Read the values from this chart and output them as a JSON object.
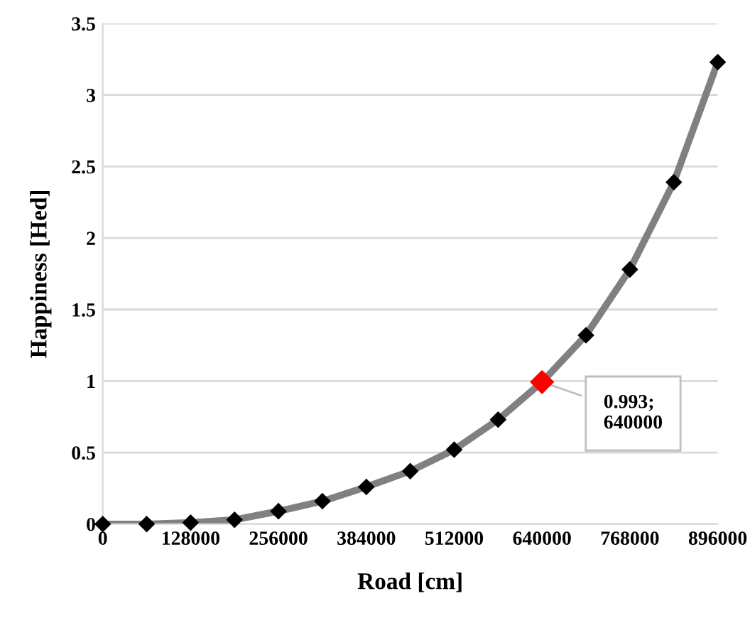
{
  "chart_data": {
    "type": "line",
    "xlabel": "Road [cm]",
    "ylabel": "Happiness [Hed]",
    "x": [
      0,
      64000,
      128000,
      192000,
      256000,
      320000,
      384000,
      448000,
      512000,
      576000,
      640000,
      704000,
      768000,
      832000,
      896000
    ],
    "series": [
      {
        "color": "#808080",
        "marker": "diamond",
        "values": [
          0,
          0,
          0.01,
          0.03,
          0.09,
          0.16,
          0.26,
          0.37,
          0.52,
          0.73,
          0.993,
          1.32,
          1.78,
          2.39,
          3.23
        ]
      },
      {
        "type": "scatter",
        "color": "#ff0000",
        "marker": "diamond",
        "x": [
          640000
        ],
        "values": [
          0.993
        ]
      }
    ],
    "xlim": [
      0,
      896000
    ],
    "xticks": [
      0,
      128000,
      256000,
      384000,
      512000,
      640000,
      768000,
      896000
    ],
    "ylim": [
      0,
      3.5
    ],
    "yticks": [
      0,
      0.5,
      1,
      1.5,
      2,
      2.5,
      3,
      3.5
    ],
    "grid": "y",
    "legend": false,
    "annotations": [
      {
        "text": "0.993;\n640000",
        "x": 640000,
        "y": 0.993
      }
    ]
  }
}
